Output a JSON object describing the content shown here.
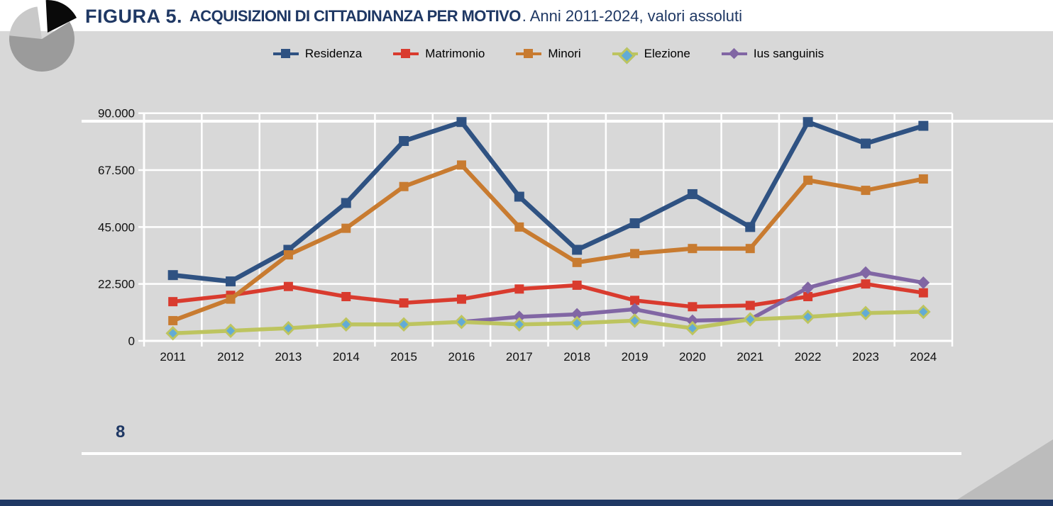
{
  "header": {
    "figure_label": "FIGURA 5.",
    "title_bold": "ACQUISIZIONI DI CITTADINANZA PER MOTIVO",
    "title_rest": ". Anni 2011-2024, valori assoluti"
  },
  "footer": {
    "page_number": "8"
  },
  "colors": {
    "accent_navy": "#1F3864",
    "background_gray": "#D8D8D8",
    "gridline": "#FFFFFF",
    "axis_text": "#111111",
    "corner_fold": "#BCBCBC",
    "logo_black": "#0A0A0A",
    "logo_gray": "#9B9B9B",
    "logo_light_gray": "#C9C9C9"
  },
  "chart_data": {
    "type": "line",
    "title": "Acquisizioni di cittadinanza per motivo, Anni 2011-2024, valori assoluti",
    "categories": [
      "2011",
      "2012",
      "2013",
      "2014",
      "2015",
      "2016",
      "2017",
      "2018",
      "2019",
      "2020",
      "2021",
      "2022",
      "2023",
      "2024"
    ],
    "series": [
      {
        "name": "Residenza",
        "marker": "square",
        "color": "#2F5282",
        "values": [
          26000,
          23500,
          36000,
          54500,
          79000,
          86500,
          57000,
          36000,
          46500,
          58000,
          45000,
          86500,
          78000,
          85000
        ]
      },
      {
        "name": "Matrimonio",
        "marker": "square",
        "color": "#D93B2E",
        "values": [
          15500,
          18000,
          21500,
          17500,
          15000,
          16500,
          20500,
          22000,
          16000,
          13500,
          14000,
          17500,
          22500,
          19000
        ]
      },
      {
        "name": "Minori",
        "marker": "square",
        "color": "#C87B30",
        "values": [
          8000,
          16500,
          34000,
          44500,
          61000,
          69500,
          45000,
          31000,
          34500,
          36500,
          36500,
          63500,
          59500,
          64000
        ]
      },
      {
        "name": "Elezione",
        "marker": "diamond",
        "color": "#BDC45F",
        "marker_fill": "#62ABD6",
        "values": [
          3000,
          4000,
          5000,
          6500,
          6500,
          7500,
          6500,
          7000,
          8000,
          5000,
          8500,
          9500,
          11000,
          11500
        ]
      },
      {
        "name": "Ius sanguinis",
        "marker": "diamond",
        "color": "#8166A4",
        "values": [
          null,
          null,
          null,
          null,
          null,
          7500,
          9500,
          10500,
          12500,
          8000,
          8500,
          21000,
          27000,
          23000
        ]
      }
    ],
    "ylim": [
      0,
      90000
    ],
    "yticks": [
      {
        "label": "90.000",
        "value": 90000
      },
      {
        "label": "67.500",
        "value": 67500
      },
      {
        "label": "45.000",
        "value": 45000
      },
      {
        "label": "22.500",
        "value": 22500
      },
      {
        "label": "0",
        "value": 0
      }
    ],
    "grid": true,
    "legend_position": "top"
  }
}
